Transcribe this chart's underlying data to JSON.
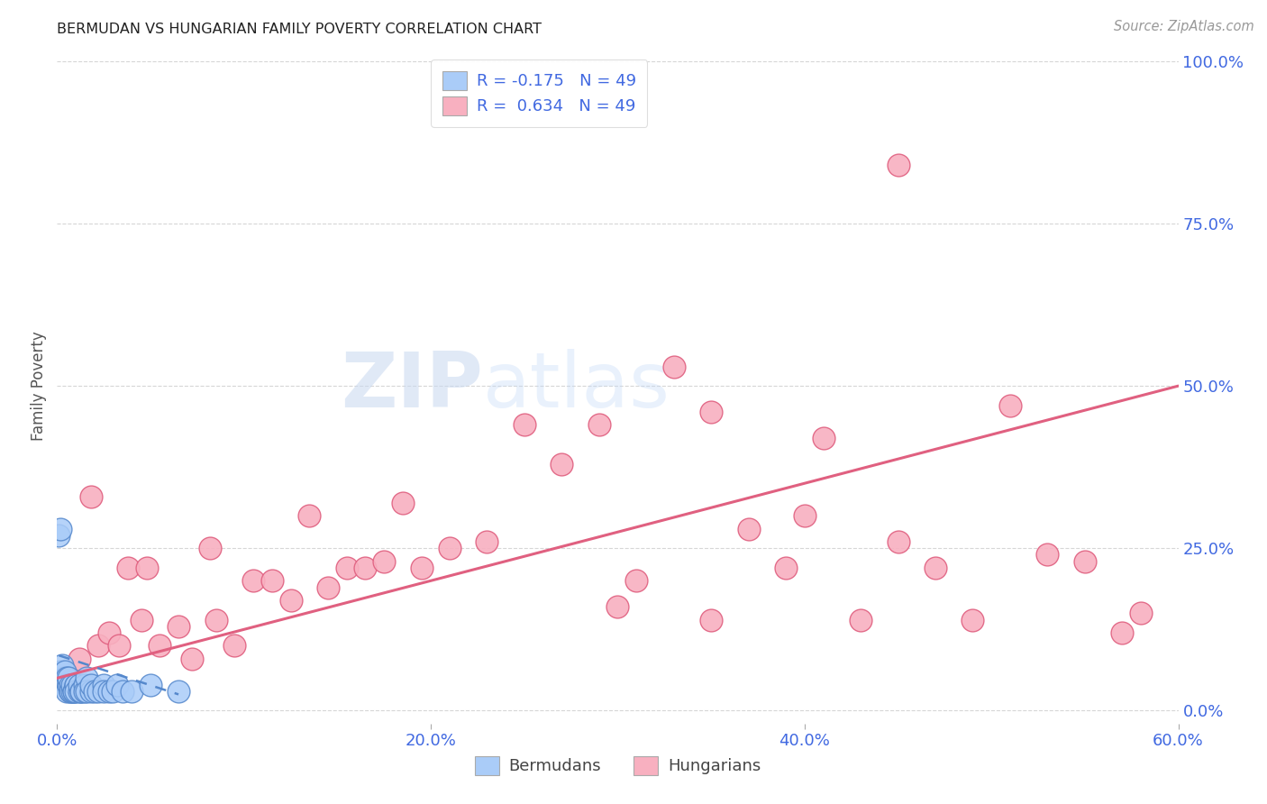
{
  "title": "BERMUDAN VS HUNGARIAN FAMILY POVERTY CORRELATION CHART",
  "source": "Source: ZipAtlas.com",
  "ylabel": "Family Poverty",
  "xlim": [
    0.0,
    0.6
  ],
  "ylim": [
    -0.02,
    1.02
  ],
  "xtick_positions": [
    0.0,
    0.2,
    0.4,
    0.6
  ],
  "xtick_labels": [
    "0.0%",
    "20.0%",
    "40.0%",
    "60.0%"
  ],
  "ytick_positions": [
    0.0,
    0.25,
    0.5,
    0.75,
    1.0
  ],
  "ytick_labels": [
    "0.0%",
    "25.0%",
    "50.0%",
    "75.0%",
    "100.0%"
  ],
  "bermuda_color": "#aaccf8",
  "bermuda_edge_color": "#5588cc",
  "hungarian_color": "#f8b0c0",
  "hungarian_edge_color": "#e06080",
  "bermuda_R": -0.175,
  "bermuda_N": 49,
  "hungarian_R": 0.634,
  "hungarian_N": 49,
  "legend_text_color": "#4169e1",
  "watermark_zip": "ZIP",
  "watermark_atlas": "atlas",
  "hungarian_x": [
    0.038,
    0.048,
    0.018,
    0.022,
    0.072,
    0.082,
    0.005,
    0.012,
    0.028,
    0.033,
    0.045,
    0.055,
    0.065,
    0.085,
    0.095,
    0.105,
    0.115,
    0.125,
    0.135,
    0.145,
    0.155,
    0.165,
    0.175,
    0.185,
    0.195,
    0.21,
    0.23,
    0.25,
    0.27,
    0.29,
    0.31,
    0.33,
    0.35,
    0.37,
    0.39,
    0.41,
    0.43,
    0.45,
    0.47,
    0.49,
    0.51,
    0.53,
    0.55,
    0.57,
    0.3,
    0.35,
    0.4,
    0.45,
    0.58
  ],
  "hungarian_y": [
    0.22,
    0.22,
    0.33,
    0.1,
    0.08,
    0.25,
    0.05,
    0.08,
    0.12,
    0.1,
    0.14,
    0.1,
    0.13,
    0.14,
    0.1,
    0.2,
    0.2,
    0.17,
    0.3,
    0.19,
    0.22,
    0.22,
    0.23,
    0.32,
    0.22,
    0.25,
    0.26,
    0.44,
    0.38,
    0.44,
    0.2,
    0.53,
    0.46,
    0.28,
    0.22,
    0.42,
    0.14,
    0.84,
    0.22,
    0.14,
    0.47,
    0.24,
    0.23,
    0.12,
    0.16,
    0.14,
    0.3,
    0.26,
    0.15
  ],
  "bermuda_x": [
    0.001,
    0.002,
    0.002,
    0.003,
    0.003,
    0.003,
    0.003,
    0.004,
    0.004,
    0.004,
    0.004,
    0.005,
    0.005,
    0.005,
    0.005,
    0.006,
    0.006,
    0.006,
    0.007,
    0.007,
    0.007,
    0.008,
    0.008,
    0.009,
    0.009,
    0.01,
    0.01,
    0.01,
    0.012,
    0.012,
    0.013,
    0.013,
    0.015,
    0.015,
    0.016,
    0.016,
    0.018,
    0.018,
    0.02,
    0.022,
    0.025,
    0.025,
    0.028,
    0.03,
    0.032,
    0.035,
    0.04,
    0.05,
    0.065
  ],
  "bermuda_y": [
    0.27,
    0.28,
    0.06,
    0.05,
    0.06,
    0.07,
    0.04,
    0.05,
    0.05,
    0.06,
    0.04,
    0.04,
    0.05,
    0.04,
    0.03,
    0.04,
    0.04,
    0.05,
    0.03,
    0.04,
    0.03,
    0.03,
    0.04,
    0.03,
    0.03,
    0.04,
    0.04,
    0.03,
    0.03,
    0.04,
    0.03,
    0.03,
    0.04,
    0.03,
    0.05,
    0.03,
    0.03,
    0.04,
    0.03,
    0.03,
    0.04,
    0.03,
    0.03,
    0.03,
    0.04,
    0.03,
    0.03,
    0.04,
    0.03
  ],
  "hung_line_x": [
    0.0,
    0.6
  ],
  "hung_line_y": [
    0.05,
    0.5
  ],
  "berm_line_x": [
    0.001,
    0.065
  ],
  "berm_line_y": [
    0.085,
    0.025
  ]
}
